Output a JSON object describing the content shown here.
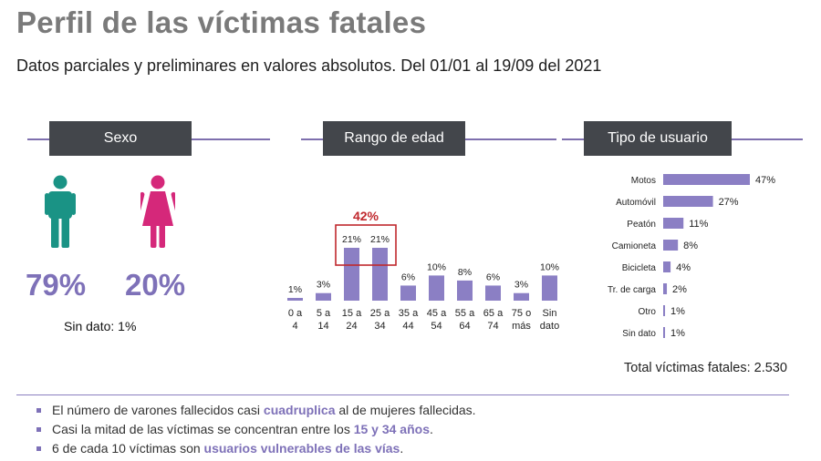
{
  "title": "Perfil de las víctimas fatales",
  "subtitle": "Datos parciales y preliminares en valores absolutos. Del 01/01 al 19/09 del 2021",
  "sections": {
    "sex": "Sexo",
    "age": "Rango de edad",
    "user": "Tipo de usuario"
  },
  "sex": {
    "male_pct": "79%",
    "female_pct": "20%",
    "no_data": "Sin dato: 1%",
    "male_color": "#1a9385",
    "female_color": "#d5287a"
  },
  "age_highlight_label": "42%",
  "total_label": "Total víctimas fatales: 2.530",
  "bullets": [
    {
      "pre": "El número de varones fallecidos casi ",
      "hl": "cuadruplica",
      "post": " al de mujeres fallecidas."
    },
    {
      "pre": "Casi la mitad de las víctimas se concentran entre los ",
      "hl": "15 y 34 años",
      "post": "."
    },
    {
      "pre": "6 de cada 10 víctimas son ",
      "hl": "usuarios vulnerables de las vías",
      "post": "."
    }
  ],
  "colors": {
    "bar": "#8b7fc4",
    "highlight_box": "#c0282d",
    "accent": "#7e71b8"
  },
  "chart_data": [
    {
      "type": "bar",
      "title": "Rango de edad",
      "categories": [
        "0 a 4",
        "5 a 14",
        "15 a 24",
        "25 a 34",
        "35 a 44",
        "45 a 54",
        "55 a 64",
        "65 a 74",
        "75 o más",
        "Sin dato"
      ],
      "values": [
        1,
        3,
        21,
        21,
        6,
        10,
        8,
        6,
        3,
        10
      ],
      "labels": [
        "1%",
        "3%",
        "21%",
        "21%",
        "6%",
        "10%",
        "8%",
        "6%",
        "3%",
        "10%"
      ],
      "highlight": {
        "categories": [
          "15 a 24",
          "25 a 34"
        ],
        "label": "42%"
      },
      "ylim": [
        0,
        21
      ]
    },
    {
      "type": "bar",
      "orientation": "horizontal",
      "title": "Tipo de usuario",
      "categories": [
        "Motos",
        "Automóvil",
        "Peatón",
        "Camioneta",
        "Bicicleta",
        "Tr. de carga",
        "Otro",
        "Sin dato"
      ],
      "values": [
        47,
        27,
        11,
        8,
        4,
        2,
        1,
        1
      ],
      "labels": [
        "47%",
        "27%",
        "11%",
        "8%",
        "4%",
        "2%",
        "1%",
        "1%"
      ],
      "xlim": [
        0,
        47
      ]
    }
  ]
}
